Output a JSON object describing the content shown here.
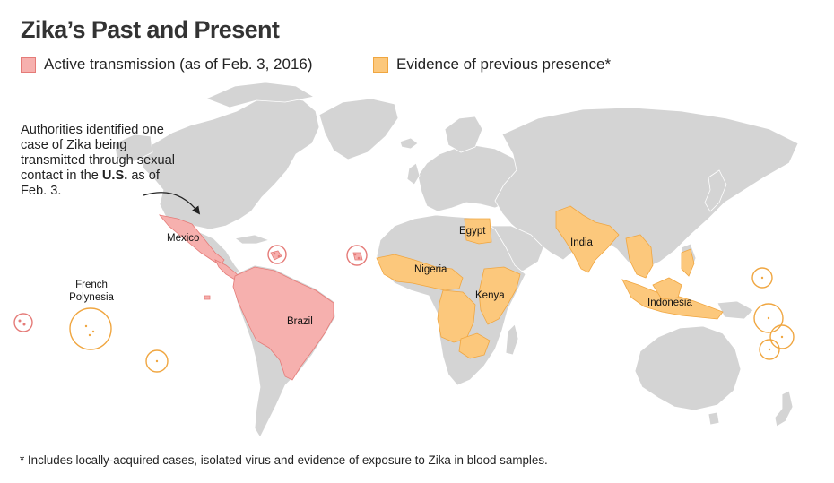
{
  "title": "Zika’s Past and Present",
  "legend": {
    "active": "Active transmission (as of Feb. 3, 2016)",
    "previous": "Evidence of previous presence*"
  },
  "colors": {
    "land": "#d4d4d4",
    "active_fill": "#f6b0ae",
    "active_stroke": "#e57b78",
    "previous_fill": "#fcc87c",
    "previous_stroke": "#f0a640",
    "borders": "#ffffff"
  },
  "annotation": {
    "text_before": "Authorities identified one case of Zika being transmitted through sexual contact in the ",
    "emphasis": "U.S.",
    "text_after": " as of Feb. 3."
  },
  "labels": {
    "mexico": "Mexico",
    "brazil": "Brazil",
    "french_polynesia": "French Polynesia",
    "egypt": "Egypt",
    "nigeria": "Nigeria",
    "kenya": "Kenya",
    "india": "India",
    "indonesia": "Indonesia"
  },
  "footnote": "* Includes locally-acquired cases, isolated virus and evidence of exposure to Zika in blood samples."
}
